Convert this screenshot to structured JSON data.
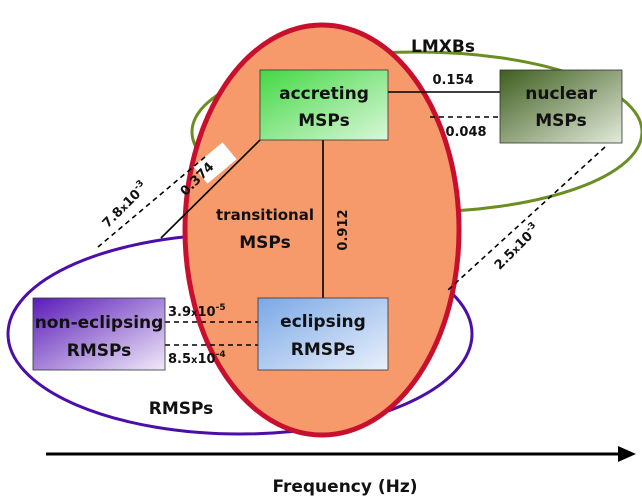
{
  "groups": {
    "lmxbs": "LMXBs",
    "rmsps": "RMSPs",
    "transitional": [
      "transitional",
      "MSPs"
    ]
  },
  "nodes": {
    "accreting": [
      "accreting",
      "MSPs"
    ],
    "nuclear": [
      "nuclear",
      "MSPs"
    ],
    "eclipsing": [
      "eclipsing",
      "RMSPs"
    ],
    "non_eclipsing": [
      "non-eclipsing",
      "RMSPs"
    ]
  },
  "links": {
    "accreting_nuclear_solid": "0.154",
    "accreting_nuclear_dashed": "0.048",
    "accreting_eclipsing": "0.912",
    "accreting_rmsps": "0.374",
    "lmxbs_rmsps_left": {
      "mantissa": "7.8",
      "times": "x",
      "base": "10",
      "exp": "-3"
    },
    "lmxbs_rmsps_right": {
      "mantissa": "2.5",
      "times": "x",
      "base": "10",
      "exp": "-3"
    },
    "noneclipsing_eclipsing_top": {
      "mantissa": "3.9",
      "times": "x",
      "base": "10",
      "exp": "-5"
    },
    "noneclipsing_eclipsing_bottom": {
      "mantissa": "8.5",
      "times": "x",
      "base": "10",
      "exp": "-4"
    }
  },
  "axis": {
    "label": "Frequency (Hz)"
  },
  "colors": {
    "lmxbs_ellipse": "#6b8e23",
    "rmsps_ellipse": "#4b0fa8",
    "transitional_fill": "#f79a6b",
    "transitional_border": "#c8102e",
    "accreting_fill": "#4fd64f",
    "nuclear_fill": "#4f6d2a",
    "eclipsing_fill": "#8fb6ea",
    "non_eclipsing_fill": "#6f2cc0"
  }
}
